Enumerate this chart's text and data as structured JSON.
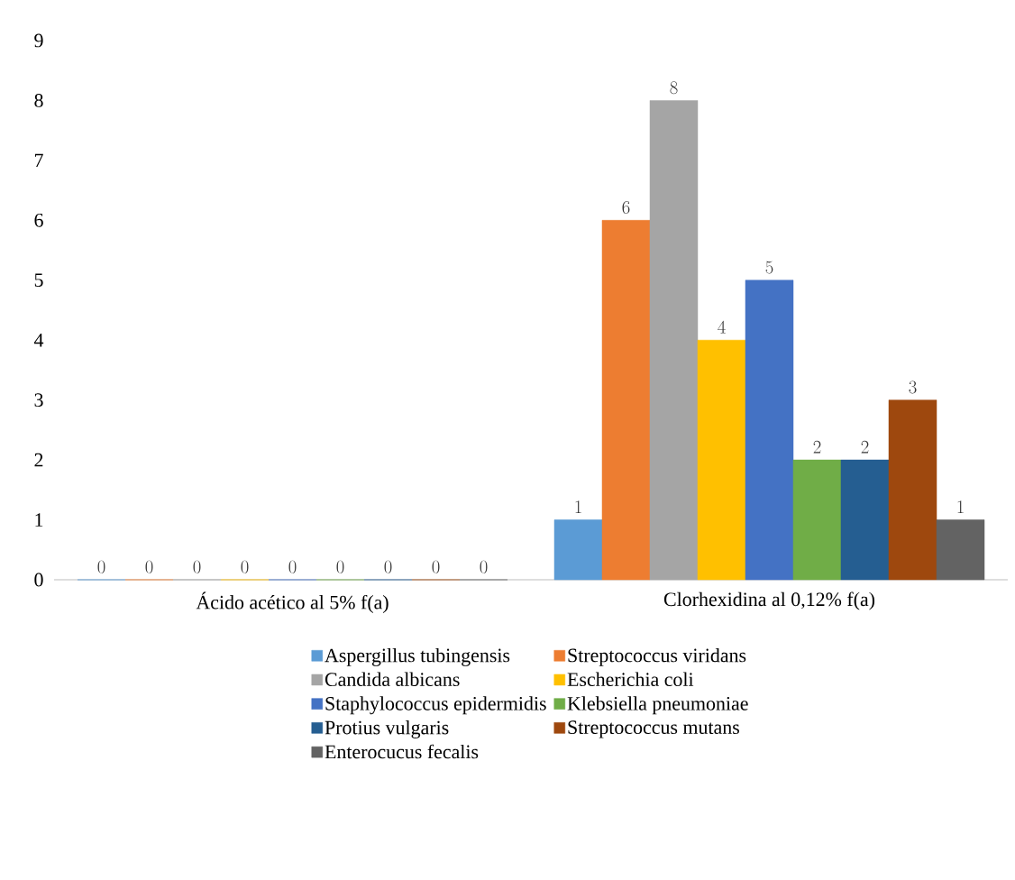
{
  "chart_data": {
    "type": "bar",
    "categories": [
      "Ácido acético al 5% f(a)",
      "Clorhexidina al 0,12% f(a)"
    ],
    "series": [
      {
        "name": "Aspergillus tubingensis",
        "color": "#5b9bd5",
        "values": [
          0,
          1
        ]
      },
      {
        "name": "Streptococcus viridans",
        "color": "#ed7d31",
        "values": [
          0,
          6
        ]
      },
      {
        "name": "Candida albicans",
        "color": "#a5a5a5",
        "values": [
          0,
          8
        ]
      },
      {
        "name": "Escherichia coli",
        "color": "#ffc000",
        "values": [
          0,
          4
        ]
      },
      {
        "name": "Staphylococcus epidermidis",
        "color": "#4472c4",
        "values": [
          0,
          5
        ]
      },
      {
        "name": "Klebsiella pneumoniae",
        "color": "#70ad47",
        "values": [
          0,
          2
        ]
      },
      {
        "name": "Protius vulgaris",
        "color": "#255e91",
        "values": [
          0,
          2
        ]
      },
      {
        "name": "Streptococcus mutans",
        "color": "#9e480e",
        "values": [
          0,
          3
        ]
      },
      {
        "name": "Enterocucus fecalis",
        "color": "#636363",
        "values": [
          0,
          1
        ]
      }
    ],
    "ylim": [
      0,
      9
    ],
    "yticks": [
      0,
      1,
      2,
      3,
      4,
      5,
      6,
      7,
      8,
      9
    ],
    "data_labels": true,
    "legend": "bottom",
    "grid": false
  }
}
